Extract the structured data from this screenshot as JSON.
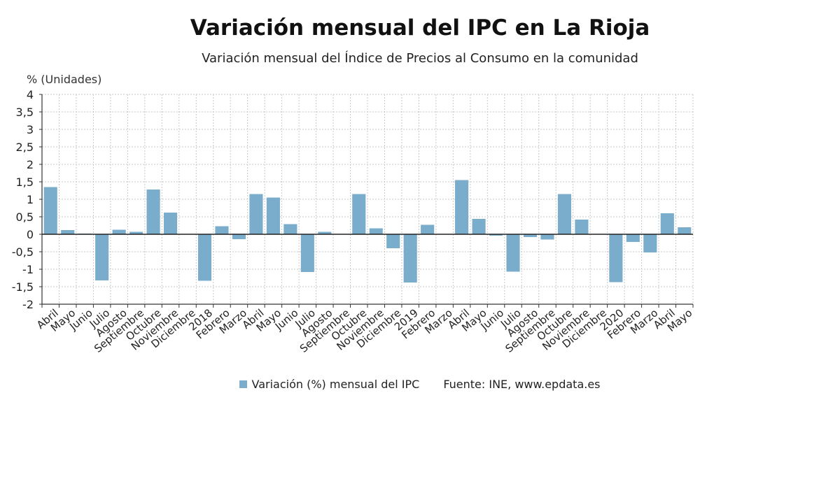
{
  "chart_data": {
    "type": "bar",
    "title": "Variación mensual del IPC en La Rioja",
    "subtitle": "Variación mensual del Índice de Precios al Consumo en la comunidad",
    "ylabel": "% (Unidades)",
    "ylim": [
      -2,
      4
    ],
    "yticks": [
      "4",
      "3,5",
      "3",
      "2,5",
      "2",
      "1,5",
      "1",
      "0,5",
      "0",
      "-0,5",
      "-1",
      "-1,5",
      "-2"
    ],
    "grid": true,
    "categories": [
      "Abril",
      "Mayo",
      "Junio",
      "Julio",
      "Agosto",
      "Septiembre",
      "Octubre",
      "Noviembre",
      "Diciembre",
      "2018",
      "Febrero",
      "Marzo",
      "Abril",
      "Mayo",
      "Junio",
      "Julio",
      "Agosto",
      "Septiembre",
      "Octubre",
      "Noviembre",
      "Diciembre",
      "2019",
      "Febrero",
      "Marzo",
      "Abril",
      "Mayo",
      "Junio",
      "Julio",
      "Agosto",
      "Septiembre",
      "Octubre",
      "Noviembre",
      "Diciembre",
      "2020",
      "Febrero",
      "Marzo",
      "Abril",
      "Mayo"
    ],
    "series": [
      {
        "name": "Variación (%) mensual del IPC",
        "color": "#7aaccc",
        "values": [
          1.35,
          0.12,
          0.02,
          -1.32,
          0.13,
          0.07,
          1.28,
          0.62,
          0.0,
          -1.33,
          0.23,
          -0.14,
          1.15,
          1.05,
          0.29,
          -1.08,
          0.07,
          0.0,
          1.15,
          0.17,
          -0.4,
          -1.38,
          0.27,
          0.0,
          1.55,
          0.44,
          -0.04,
          -1.07,
          -0.08,
          -0.15,
          1.15,
          0.42,
          0.0,
          -1.37,
          -0.22,
          -0.52,
          0.6,
          0.2
        ]
      }
    ],
    "legend_position": "bottom-center"
  },
  "legend": {
    "series_label": "Variación (%) mensual del IPC",
    "source": "Fuente: INE, www.epdata.es"
  }
}
